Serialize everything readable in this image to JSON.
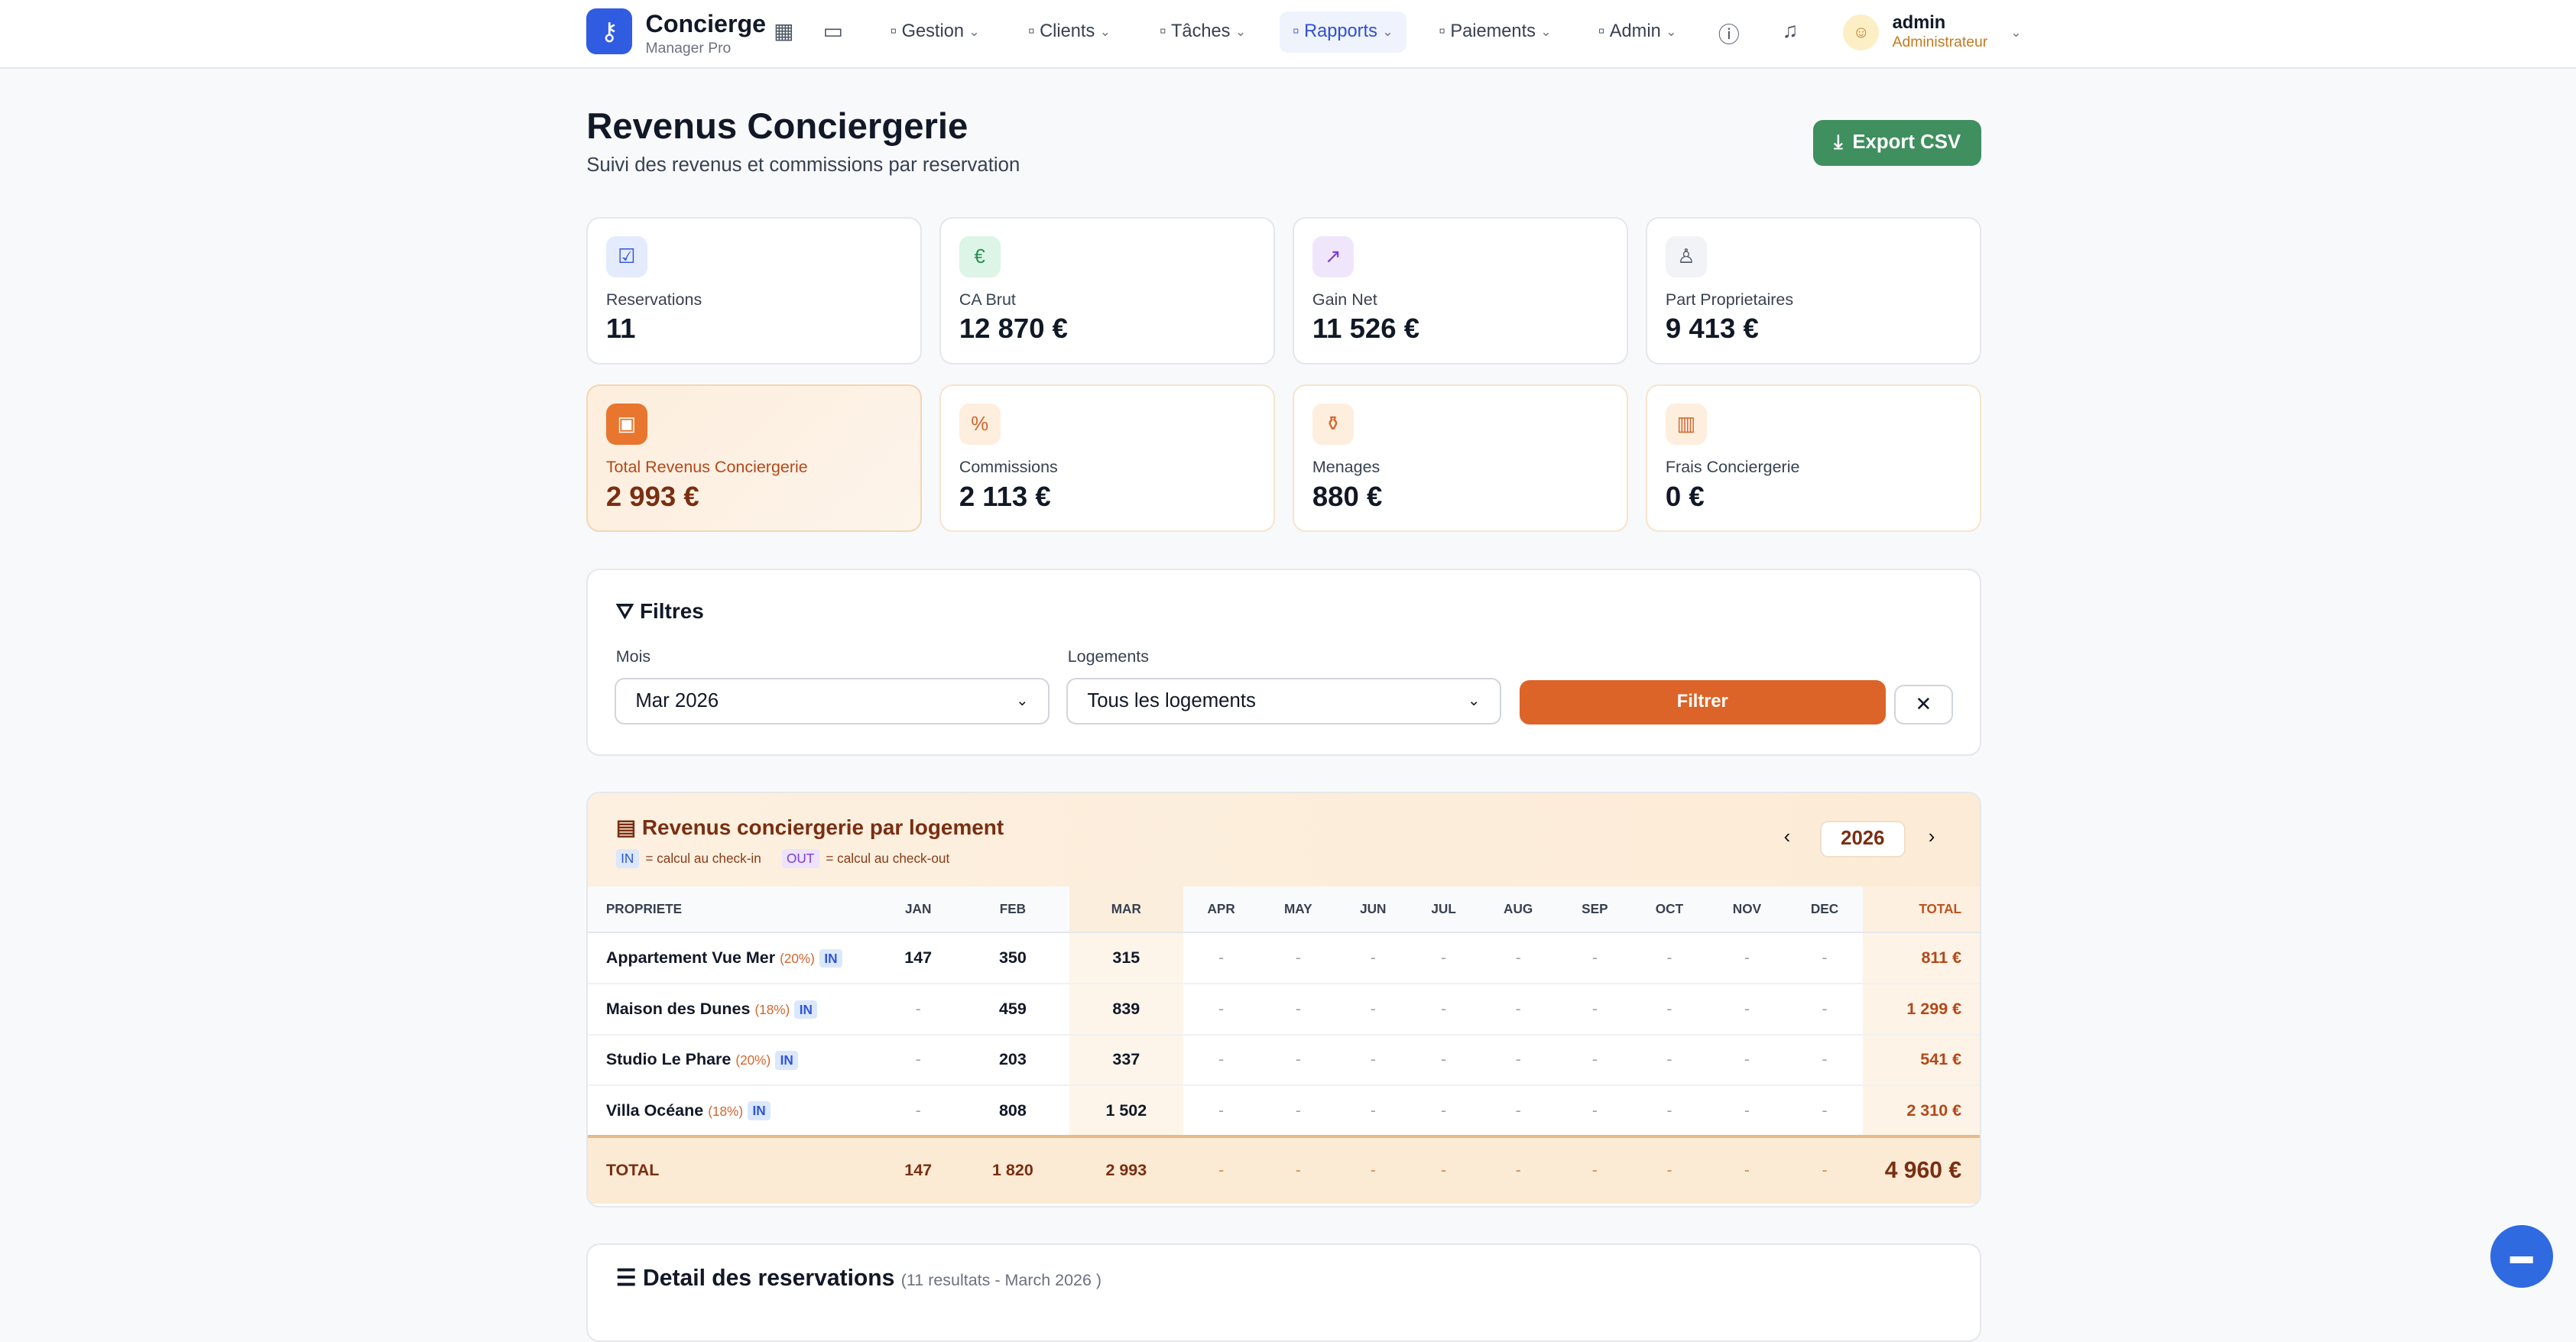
{
  "header": {
    "brand": "Concierge",
    "brand_sub": "Manager Pro",
    "nav": [
      {
        "label": "Gestion",
        "icon": "building-icon"
      },
      {
        "label": "Clients",
        "icon": "chat-icon"
      },
      {
        "label": "Tâches",
        "icon": "clipboard-icon"
      },
      {
        "label": "Rapports",
        "icon": "chart-icon",
        "active": true
      },
      {
        "label": "Paiements",
        "icon": "card-icon"
      },
      {
        "label": "Admin",
        "icon": "gear-icon"
      }
    ],
    "user": {
      "name": "admin",
      "role": "Administrateur"
    }
  },
  "page": {
    "title": "Revenus Conciergerie",
    "subtitle": "Suivi des revenus et commissions par reservation",
    "export_label": "Export CSV"
  },
  "stats": [
    {
      "label": "Reservations",
      "value": "11",
      "icon": "calendar-check-icon",
      "color": "#2f55d4"
    },
    {
      "label": "CA Brut",
      "value": "12 870 €",
      "icon": "euro-icon",
      "color": "#2f8f5a"
    },
    {
      "label": "Gain Net",
      "value": "11 526 €",
      "icon": "trending-up-icon",
      "color": "#7b3bd9"
    },
    {
      "label": "Part Proprietaires",
      "value": "9 413 €",
      "icon": "user-icon",
      "color": "#4b5563"
    },
    {
      "label": "Total Revenus Conciergerie",
      "value": "2 993 €",
      "icon": "wallet-icon",
      "color": "#e8762f"
    },
    {
      "label": "Commissions",
      "value": "2 113 €",
      "icon": "percent-icon",
      "color": "#d0662e"
    },
    {
      "label": "Menages",
      "value": "880 €",
      "icon": "spray-icon",
      "color": "#d0662e"
    },
    {
      "label": "Frais Conciergerie",
      "value": "0 €",
      "icon": "briefcase-icon",
      "color": "#d0662e"
    }
  ],
  "filters": {
    "title": "Filtres",
    "month_label": "Mois",
    "month_value": "Mar 2026",
    "property_label": "Logements",
    "property_value": "Tous les logements",
    "submit": "Filtrer"
  },
  "revenue_table": {
    "title": "Revenus conciergerie par logement",
    "legend_in": "IN",
    "legend_in_text": "= calcul au check-in",
    "legend_out": "OUT",
    "legend_out_text": "= calcul au check-out",
    "year": "2026",
    "columns": [
      "PROPRIETE",
      "JAN",
      "FEB",
      "MAR",
      "APR",
      "MAY",
      "JUN",
      "JUL",
      "AUG",
      "SEP",
      "OCT",
      "NOV",
      "DEC",
      "TOTAL"
    ],
    "rows": [
      {
        "name": "Appartement Vue Mer",
        "pct": "(20%)",
        "badge": "IN",
        "values": [
          "147",
          "350",
          "315",
          "-",
          "-",
          "-",
          "-",
          "-",
          "-",
          "-",
          "-",
          "-"
        ],
        "total": "811 €"
      },
      {
        "name": "Maison des Dunes",
        "pct": "(18%)",
        "badge": "IN",
        "values": [
          "-",
          "459",
          "839",
          "-",
          "-",
          "-",
          "-",
          "-",
          "-",
          "-",
          "-",
          "-"
        ],
        "total": "1 299 €"
      },
      {
        "name": "Studio Le Phare",
        "pct": "(20%)",
        "badge": "IN",
        "values": [
          "-",
          "203",
          "337",
          "-",
          "-",
          "-",
          "-",
          "-",
          "-",
          "-",
          "-",
          "-"
        ],
        "total": "541 €"
      },
      {
        "name": "Villa Océane",
        "pct": "(18%)",
        "badge": "IN",
        "values": [
          "-",
          "808",
          "1 502",
          "-",
          "-",
          "-",
          "-",
          "-",
          "-",
          "-",
          "-",
          "-"
        ],
        "total": "2 310 €"
      }
    ],
    "total_row": {
      "label": "TOTAL",
      "values": [
        "147",
        "1 820",
        "2 993",
        "-",
        "-",
        "-",
        "-",
        "-",
        "-",
        "-",
        "-",
        "-"
      ],
      "total": "4 960 €"
    }
  },
  "details": {
    "title": "Detail des reservations",
    "meta": "(11 resultats - March 2026 )"
  }
}
